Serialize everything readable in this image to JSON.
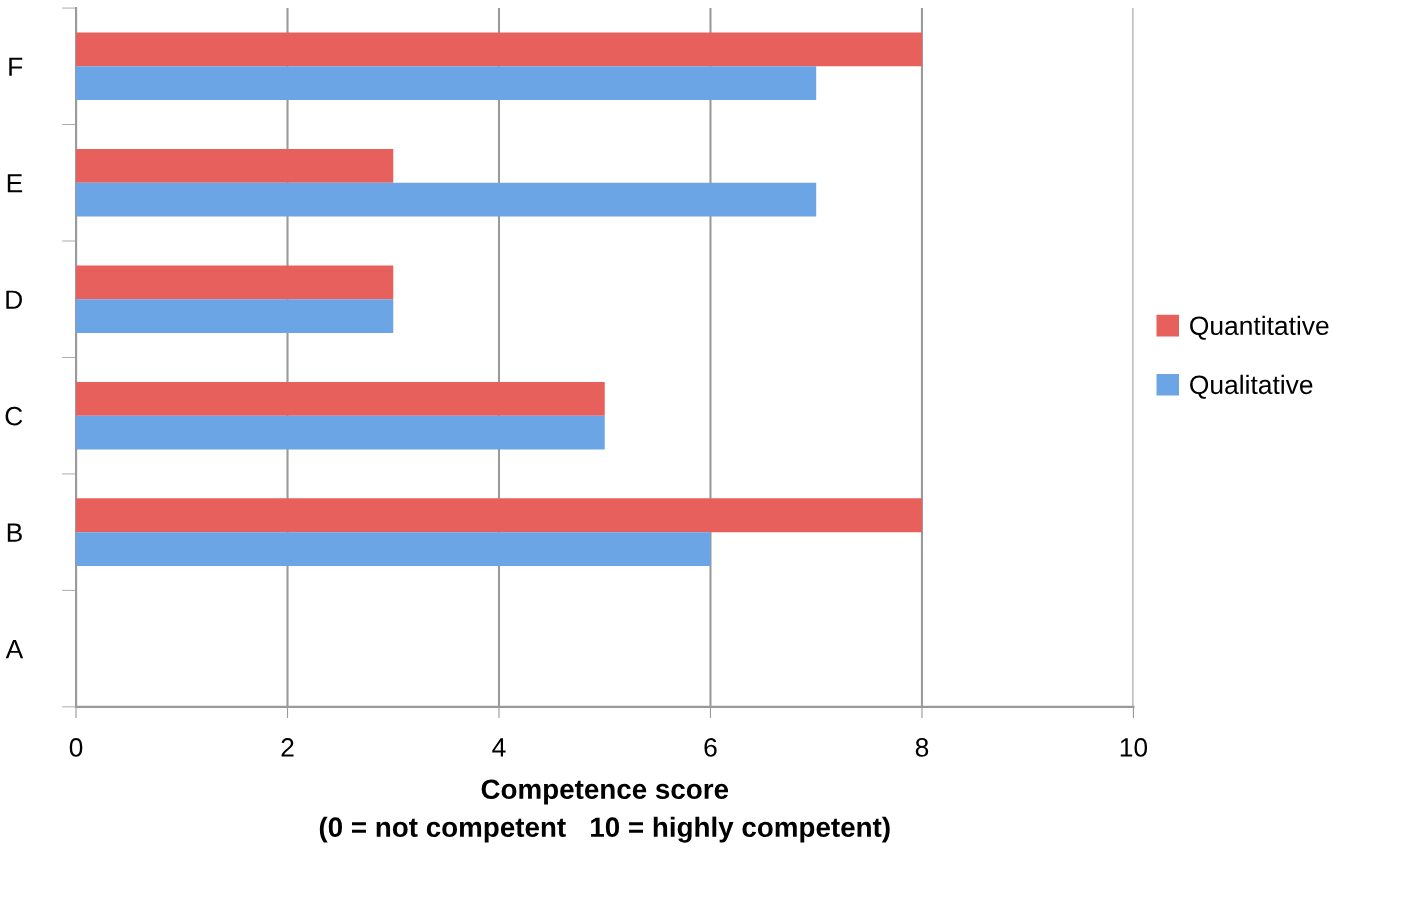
{
  "chart_data": {
    "type": "bar",
    "orientation": "horizontal",
    "categories": [
      "F",
      "E",
      "D",
      "C",
      "B",
      "A"
    ],
    "series": [
      {
        "name": "Quantitative",
        "color": "#e8605c",
        "values": [
          8,
          3,
          3,
          5,
          8,
          null
        ]
      },
      {
        "name": "Qualitative",
        "color": "#6ba5e6",
        "values": [
          7,
          7,
          3,
          5,
          6,
          null
        ]
      }
    ],
    "xlabel": "Competence score\n(0 = not competent   10 = highly competent)",
    "xlim": [
      0,
      10
    ],
    "xticks": [
      0,
      2,
      4,
      6,
      8,
      10
    ],
    "grid": "x",
    "legend": "right"
  }
}
